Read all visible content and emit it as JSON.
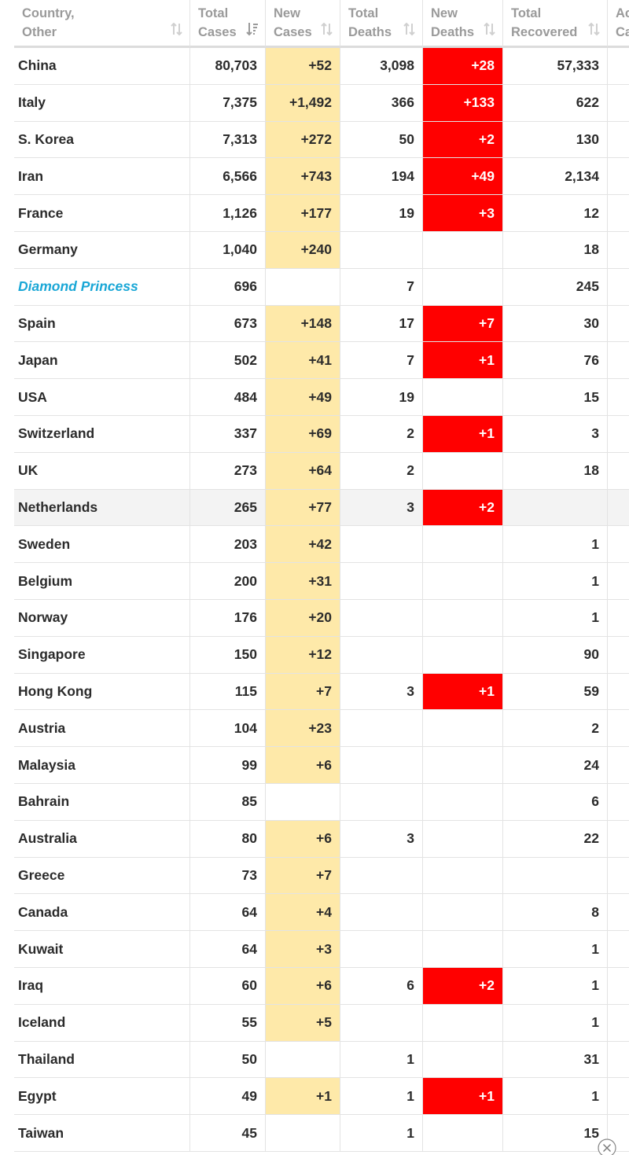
{
  "table": {
    "headers": [
      [
        "Country,",
        "Other"
      ],
      [
        "Total",
        "Cases"
      ],
      [
        "New",
        "Cases"
      ],
      [
        "Total",
        "Deaths"
      ],
      [
        "New",
        "Deaths"
      ],
      [
        "Total",
        "Recovered"
      ],
      [
        "Ac",
        "Ca"
      ]
    ],
    "rows": [
      [
        "China",
        "80,703",
        "+52",
        "3,098",
        "+28",
        "57,333"
      ],
      [
        "Italy",
        "7,375",
        "+1,492",
        "366",
        "+133",
        "622"
      ],
      [
        "S. Korea",
        "7,313",
        "+272",
        "50",
        "+2",
        "130"
      ],
      [
        "Iran",
        "6,566",
        "+743",
        "194",
        "+49",
        "2,134"
      ],
      [
        "France",
        "1,126",
        "+177",
        "19",
        "+3",
        "12"
      ],
      [
        "Germany",
        "1,040",
        "+240",
        null,
        null,
        "18"
      ],
      [
        "Diamond Princess",
        "696",
        null,
        "7",
        null,
        "245"
      ],
      [
        "Spain",
        "673",
        "+148",
        "17",
        "+7",
        "30"
      ],
      [
        "Japan",
        "502",
        "+41",
        "7",
        "+1",
        "76"
      ],
      [
        "USA",
        "484",
        "+49",
        "19",
        null,
        "15"
      ],
      [
        "Switzerland",
        "337",
        "+69",
        "2",
        "+1",
        "3"
      ],
      [
        "UK",
        "273",
        "+64",
        "2",
        null,
        "18"
      ],
      [
        "Netherlands",
        "265",
        "+77",
        "3",
        "+2",
        null
      ],
      [
        "Sweden",
        "203",
        "+42",
        null,
        null,
        "1"
      ],
      [
        "Belgium",
        "200",
        "+31",
        null,
        null,
        "1"
      ],
      [
        "Norway",
        "176",
        "+20",
        null,
        null,
        "1"
      ],
      [
        "Singapore",
        "150",
        "+12",
        null,
        null,
        "90"
      ],
      [
        "Hong Kong",
        "115",
        "+7",
        "3",
        "+1",
        "59"
      ],
      [
        "Austria",
        "104",
        "+23",
        null,
        null,
        "2"
      ],
      [
        "Malaysia",
        "99",
        "+6",
        null,
        null,
        "24"
      ],
      [
        "Bahrain",
        "85",
        null,
        null,
        null,
        "6"
      ],
      [
        "Australia",
        "80",
        "+6",
        "3",
        null,
        "22"
      ],
      [
        "Greece",
        "73",
        "+7",
        null,
        null,
        null
      ],
      [
        "Canada",
        "64",
        "+4",
        null,
        null,
        "8"
      ],
      [
        "Kuwait",
        "64",
        "+3",
        null,
        null,
        "1"
      ],
      [
        "Iraq",
        "60",
        "+6",
        "6",
        "+2",
        "1"
      ],
      [
        "Iceland",
        "55",
        "+5",
        null,
        null,
        "1"
      ],
      [
        "Thailand",
        "50",
        null,
        "1",
        null,
        "31"
      ],
      [
        "Egypt",
        "49",
        "+1",
        "1",
        "+1",
        "1"
      ],
      [
        "Taiwan",
        "45",
        null,
        "1",
        null,
        "15"
      ]
    ]
  }
}
